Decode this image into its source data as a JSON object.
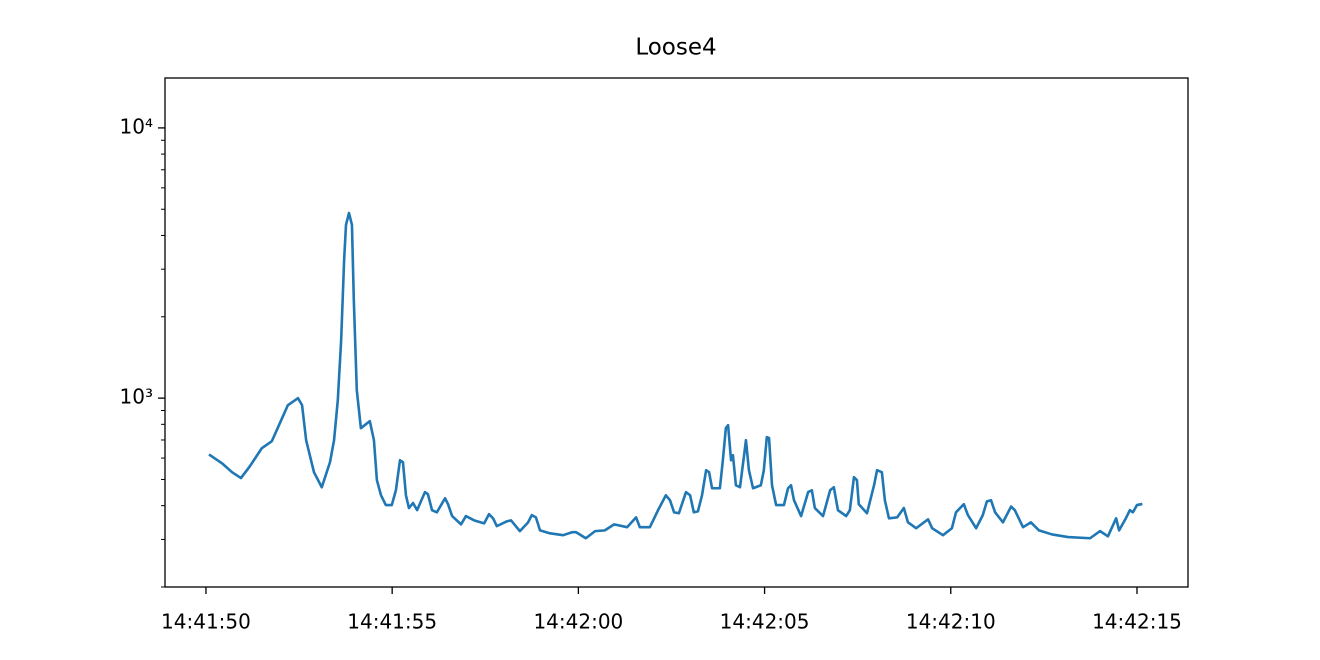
{
  "chart_data": {
    "type": "line",
    "title": "Loose4",
    "log_y": true,
    "grid": false,
    "xlim": [
      "14:41:48.90",
      "14:42:16.37"
    ],
    "xticks": [
      "14:41:50",
      "14:41:55",
      "14:42:00",
      "14:42:05",
      "14:42:10",
      "14:42:15"
    ],
    "ylim": [
      200,
      15300
    ],
    "yticks": [
      {
        "value": 1000,
        "label": "10³"
      },
      {
        "value": 10000,
        "label": "10⁴"
      }
    ],
    "x": [
      "14:41:50.11",
      "14:41:50.43",
      "14:41:50.70",
      "14:41:50.94",
      "14:41:51.18",
      "14:41:51.50",
      "14:41:51.77",
      "14:41:51.96",
      "14:41:52.20",
      "14:41:52.47",
      "14:41:52.58",
      "14:41:52.69",
      "14:41:52.90",
      "14:41:53.11",
      "14:41:53.33",
      "14:41:53.44",
      "14:41:53.54",
      "14:41:53.63",
      "14:41:53.71",
      "14:41:53.76",
      "14:41:53.84",
      "14:41:53.92",
      "14:41:53.97",
      "14:41:54.05",
      "14:41:54.16",
      "14:41:54.40",
      "14:41:54.51",
      "14:41:54.59",
      "14:41:54.70",
      "14:41:54.83",
      "14:41:54.99",
      "14:41:55.10",
      "14:41:55.21",
      "14:41:55.29",
      "14:41:55.37",
      "14:41:55.45",
      "14:41:55.56",
      "14:41:55.67",
      "14:41:55.88",
      "14:41:55.96",
      "14:41:56.07",
      "14:41:56.20",
      "14:41:56.42",
      "14:41:56.50",
      "14:41:56.61",
      "14:41:56.85",
      "14:41:56.98",
      "14:41:57.20",
      "14:41:57.47",
      "14:41:57.60",
      "14:41:57.71",
      "14:41:57.81",
      "14:41:58.08",
      "14:41:58.19",
      "14:41:58.43",
      "14:41:58.65",
      "14:41:58.75",
      "14:41:58.86",
      "14:41:58.97",
      "14:41:59.24",
      "14:41:59.59",
      "14:41:59.83",
      "14:41:59.94",
      "14:42:00.20",
      "14:42:00.45",
      "14:42:00.71",
      "14:42:00.96",
      "14:42:01.31",
      "14:42:01.55",
      "14:42:01.65",
      "14:42:01.92",
      "14:42:02.14",
      "14:42:02.35",
      "14:42:02.46",
      "14:42:02.57",
      "14:42:02.70",
      "14:42:02.89",
      "14:42:03.00",
      "14:42:03.10",
      "14:42:03.21",
      "14:42:03.32",
      "14:42:03.43",
      "14:42:03.51",
      "14:42:03.59",
      "14:42:03.80",
      "14:42:03.88",
      "14:42:03.96",
      "14:42:04.02",
      "14:42:04.10",
      "14:42:04.15",
      "14:42:04.23",
      "14:42:04.34",
      "14:42:04.45",
      "14:42:04.50",
      "14:42:04.58",
      "14:42:04.69",
      "14:42:04.90",
      "14:42:04.98",
      "14:42:05.06",
      "14:42:05.12",
      "14:42:05.20",
      "14:42:05.31",
      "14:42:05.52",
      "14:42:05.63",
      "14:42:05.71",
      "14:42:05.79",
      "14:42:05.98",
      "14:42:06.17",
      "14:42:06.27",
      "14:42:06.35",
      "14:42:06.57",
      "14:42:06.76",
      "14:42:06.86",
      "14:42:06.97",
      "14:42:07.19",
      "14:42:07.29",
      "14:42:07.40",
      "14:42:07.48",
      "14:42:07.53",
      "14:42:07.75",
      "14:42:07.94",
      "14:42:08.02",
      "14:42:08.15",
      "14:42:08.23",
      "14:42:08.34",
      "14:42:08.56",
      "14:42:08.74",
      "14:42:08.85",
      "14:42:09.07",
      "14:42:09.39",
      "14:42:09.50",
      "14:42:09.79",
      "14:42:10.03",
      "14:42:10.14",
      "14:42:10.35",
      "14:42:10.46",
      "14:42:10.68",
      "14:42:10.86",
      "14:42:10.97",
      "14:42:11.08",
      "14:42:11.19",
      "14:42:11.40",
      "14:42:11.62",
      "14:42:11.72",
      "14:42:11.94",
      "14:42:12.15",
      "14:42:12.37",
      "14:42:12.72",
      "14:42:13.15",
      "14:42:13.74",
      "14:42:14.01",
      "14:42:14.22",
      "14:42:14.44",
      "14:42:14.52",
      "14:42:14.70",
      "14:42:14.81",
      "14:42:14.89",
      "14:42:15.00",
      "14:42:15.11"
    ],
    "series": [
      {
        "name": "Loose4",
        "color": "#1f77b4",
        "values": [
          615,
          574,
          532,
          506,
          560,
          653,
          693,
          794,
          942,
          1000,
          942,
          699,
          532,
          468,
          579,
          699,
          983,
          1640,
          3244,
          4373,
          4845,
          4373,
          2307,
          1071,
          774,
          822,
          699,
          497,
          437,
          402,
          402,
          456,
          589,
          579,
          437,
          392,
          409,
          385,
          449,
          441,
          385,
          378,
          426,
          405,
          366,
          341,
          366,
          353,
          344,
          372,
          359,
          336,
          350,
          353,
          322,
          347,
          369,
          362,
          324,
          316,
          311,
          319,
          319,
          303,
          322,
          324,
          341,
          333,
          362,
          333,
          333,
          385,
          437,
          419,
          378,
          375,
          449,
          437,
          378,
          381,
          437,
          541,
          532,
          464,
          464,
          589,
          774,
          794,
          589,
          615,
          476,
          468,
          615,
          699,
          541,
          464,
          476,
          541,
          717,
          712,
          476,
          402,
          402,
          464,
          476,
          419,
          366,
          449,
          456,
          392,
          366,
          456,
          468,
          385,
          366,
          385,
          510,
          497,
          405,
          375,
          476,
          541,
          532,
          419,
          359,
          362,
          392,
          347,
          330,
          356,
          330,
          311,
          330,
          378,
          405,
          369,
          330,
          369,
          415,
          419,
          378,
          347,
          397,
          385,
          333,
          347,
          324,
          313,
          306,
          303,
          322,
          308,
          359,
          324,
          359,
          385,
          378,
          402,
          405
        ]
      }
    ]
  }
}
